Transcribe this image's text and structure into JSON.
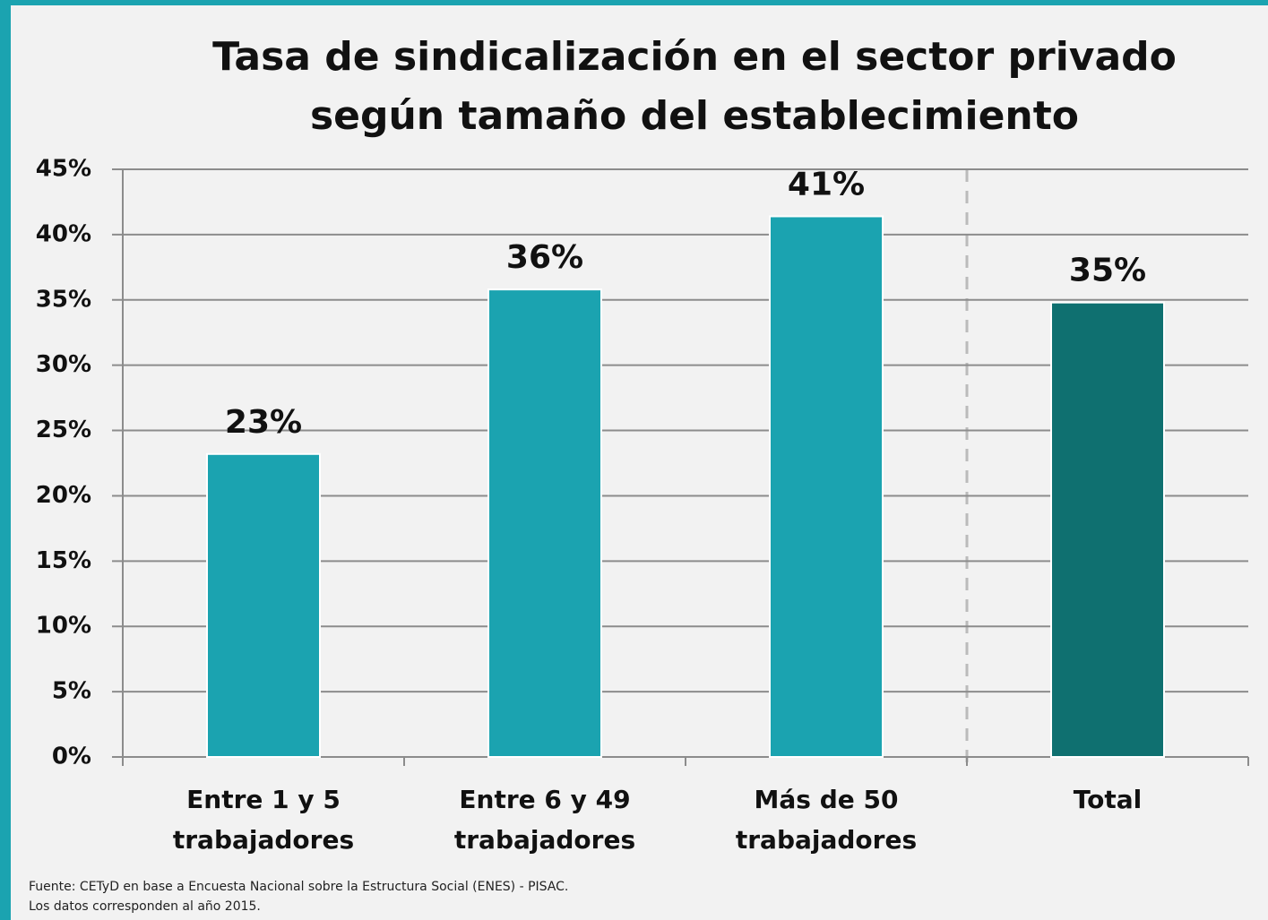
{
  "chart_data": {
    "type": "bar",
    "title": "Tasa de sindicalización en el sector privado",
    "subtitle": "según tamaño del establecimiento",
    "categories": [
      "Entre 1 y 5 trabajadores",
      "Entre 6 y 49 trabajadores",
      "Más de 50 trabajadores",
      "Total"
    ],
    "values": [
      23.2,
      35.8,
      41.4,
      34.8
    ],
    "value_labels": [
      "23%",
      "36%",
      "41%",
      "35%"
    ],
    "colors": [
      "#1ba3b0",
      "#1ba3b0",
      "#1ba3b0",
      "#0f7070"
    ],
    "ylim": [
      0,
      45
    ],
    "yticks": [
      {
        "value": 0,
        "label": "0%"
      },
      {
        "value": 5,
        "label": "5%"
      },
      {
        "value": 10,
        "label": "10%"
      },
      {
        "value": 15,
        "label": "15%"
      },
      {
        "value": 20,
        "label": "20%"
      },
      {
        "value": 25,
        "label": "25%"
      },
      {
        "value": 30,
        "label": "30%"
      },
      {
        "value": 35,
        "label": "35%"
      },
      {
        "value": 40,
        "label": "40%"
      },
      {
        "value": 45,
        "label": "45%"
      }
    ],
    "grid": true,
    "notes": [
      "Fuente: CETyD en base a Encuesta Nacional sobre la Estructura Social (ENES) - PISAC.",
      "Los datos corresponden al año 2015."
    ]
  }
}
